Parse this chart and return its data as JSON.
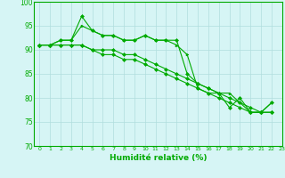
{
  "xlabel": "Humidité relative (%)",
  "xlim": [
    -0.5,
    23
  ],
  "ylim": [
    70,
    100
  ],
  "yticks": [
    70,
    75,
    80,
    85,
    90,
    95,
    100
  ],
  "xticks": [
    0,
    1,
    2,
    3,
    4,
    5,
    6,
    7,
    8,
    9,
    10,
    11,
    12,
    13,
    14,
    15,
    16,
    17,
    18,
    19,
    20,
    21,
    22,
    23
  ],
  "bg_color": "#d6f5f5",
  "grid_color": "#b0dede",
  "line_color": "#00aa00",
  "line1_x": [
    0,
    1,
    2,
    3,
    4,
    5,
    6,
    7,
    8,
    9,
    10,
    11,
    12,
    13,
    14,
    15,
    16,
    17,
    18,
    19,
    20,
    21,
    22
  ],
  "line1_y": [
    91,
    91,
    92,
    92,
    97,
    94,
    93,
    93,
    92,
    92,
    93,
    92,
    92,
    92,
    85,
    83,
    82,
    81,
    78,
    80,
    77,
    77,
    79
  ],
  "line2_x": [
    0,
    1,
    2,
    3,
    4,
    5,
    6,
    7,
    8,
    9,
    10,
    11,
    12,
    13,
    14,
    15,
    16,
    17,
    18,
    19,
    20,
    21,
    22
  ],
  "line2_y": [
    91,
    91,
    92,
    92,
    95,
    94,
    93,
    93,
    92,
    92,
    93,
    92,
    92,
    91,
    89,
    82,
    81,
    81,
    81,
    79,
    77,
    77,
    79
  ],
  "line3_x": [
    0,
    1,
    2,
    3,
    4,
    5,
    6,
    7,
    8,
    9,
    10,
    11,
    12,
    13,
    14,
    15,
    16,
    17,
    18,
    19,
    20,
    21,
    22
  ],
  "line3_y": [
    91,
    91,
    91,
    91,
    91,
    90,
    90,
    90,
    89,
    89,
    88,
    87,
    86,
    85,
    84,
    83,
    82,
    81,
    80,
    79,
    78,
    77,
    77
  ],
  "line4_x": [
    0,
    1,
    2,
    3,
    4,
    5,
    6,
    7,
    8,
    9,
    10,
    11,
    12,
    13,
    14,
    15,
    16,
    17,
    18,
    19,
    20,
    21,
    22
  ],
  "line4_y": [
    91,
    91,
    91,
    91,
    91,
    90,
    89,
    89,
    88,
    88,
    87,
    86,
    85,
    84,
    83,
    82,
    81,
    80,
    79,
    78,
    77,
    77,
    77
  ]
}
